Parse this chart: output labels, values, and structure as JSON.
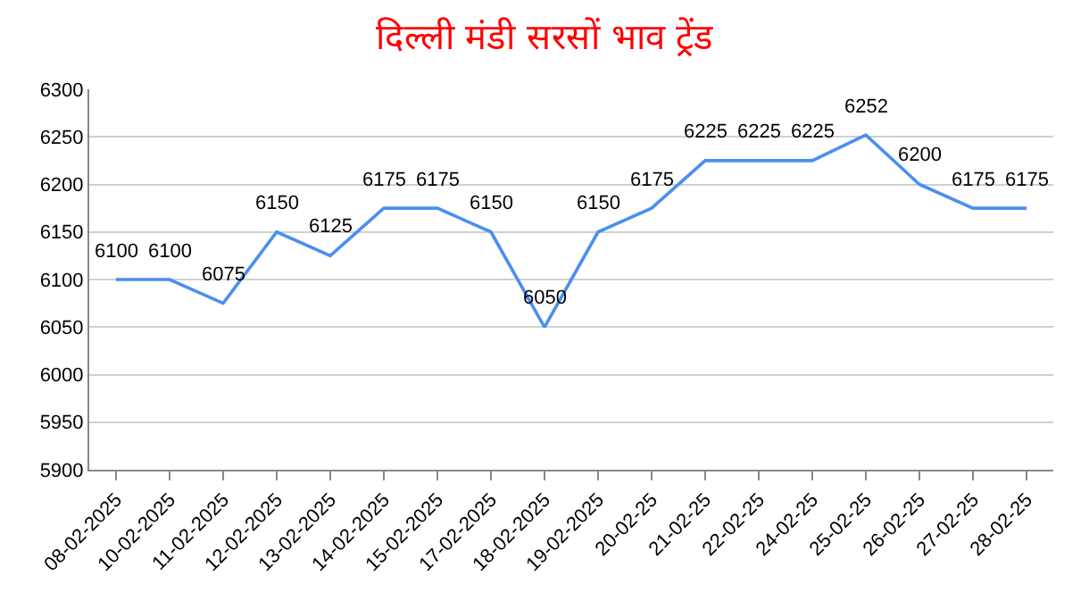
{
  "chart_data": {
    "type": "line",
    "title": "दिल्ली मंडी सरसों भाव ट्रेंड",
    "categories": [
      "08-02-2025",
      "10-02-2025",
      "11-02-2025",
      "12-02-2025",
      "13-02-2025",
      "14-02-2025",
      "15-02-2025",
      "17-02-2025",
      "18-02-2025",
      "19-02-2025",
      "20-02-25",
      "21-02-25",
      "22-02-25",
      "24-02-25",
      "25-02-25",
      "26-02-25",
      "27-02-25",
      "28-02-25"
    ],
    "series": [
      {
        "color": "#4a8ff0",
        "values": [
          6100,
          6100,
          6075,
          6150,
          6125,
          6175,
          6175,
          6150,
          6050,
          6150,
          6175,
          6225,
          6225,
          6225,
          6252,
          6200,
          6175,
          6175
        ]
      }
    ],
    "ylim": [
      5900,
      6300
    ],
    "yticks": [
      5900,
      5950,
      6000,
      6050,
      6100,
      6150,
      6200,
      6250,
      6300
    ],
    "grid": "y",
    "data_labels": true,
    "marker": "none",
    "line_style": "solid"
  }
}
